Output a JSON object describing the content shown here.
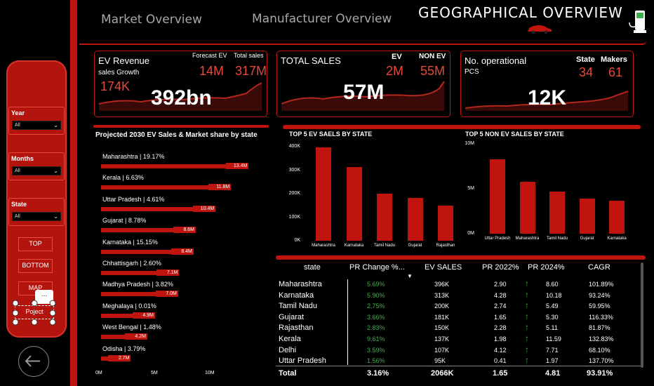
{
  "nav": {
    "market_overview": "Market Overview",
    "manufacturer_overview": "Manufacturer Overview",
    "geographical_overview": "GEOGRAPHICAL  OVERVIEW"
  },
  "sidebar": {
    "filters": [
      {
        "label": "Year",
        "value": "All"
      },
      {
        "label": "Months",
        "value": "All"
      },
      {
        "label": "State",
        "value": "All"
      }
    ],
    "buttons": {
      "top": "TOP",
      "bottom": "BOTTOM",
      "map": "MAP",
      "project": "Poject",
      "more": "..."
    }
  },
  "kpis": {
    "ev_revenue": {
      "title": "EV Revenue",
      "sub": "sales Growth",
      "growth": "174K",
      "big": "392bn",
      "forecast_label": "Forecast EV",
      "forecast_value": "14M",
      "total_label": "Total sales",
      "total_value": "317M"
    },
    "total_sales": {
      "title": "TOTAL SALES",
      "ev_label": "EV",
      "ev_value": "2M",
      "nonev_label": "NON EV",
      "nonev_value": "55M",
      "big": "57M"
    },
    "operational": {
      "title": "No. operational",
      "sub": "PCS",
      "state_label": "State",
      "state_value": "34",
      "makers_label": "Makers",
      "makers_value": "61",
      "big": "12K"
    }
  },
  "projected": {
    "title": "Projected 2030 EV Sales & Market share by state",
    "axis_max_m": 12,
    "rows": [
      {
        "label": "Maharashtra | 19.17%",
        "value_m": 13.4,
        "text": "13.4M"
      },
      {
        "label": "Kerala | 6.63%",
        "value_m": 11.8,
        "text": "11.8M"
      },
      {
        "label": "Uttar Pradesh | 4.61%",
        "value_m": 10.4,
        "text": "10.4M"
      },
      {
        "label": "Gujarat | 8.78%",
        "value_m": 8.6,
        "text": "8.6M"
      },
      {
        "label": "Karnataka | 15.15%",
        "value_m": 8.4,
        "text": "8.4M"
      },
      {
        "label": "Chhattisgarh | 2.60%",
        "value_m": 7.1,
        "text": "7.1M"
      },
      {
        "label": "Madhya Pradesh | 3.82%",
        "value_m": 7.0,
        "text": "7.0M"
      },
      {
        "label": "Meghalaya | 0.01%",
        "value_m": 4.9,
        "text": "4.9M"
      },
      {
        "label": "West Bengal | 1.48%",
        "value_m": 4.2,
        "text": "4.2M"
      },
      {
        "label": "Odisha | 3.79%",
        "value_m": 2.7,
        "text": "2.7M"
      }
    ],
    "ticks": [
      "0M",
      "5M",
      "10M"
    ]
  },
  "chart_data": [
    {
      "type": "bar",
      "title": "TOP 5 EV SAELS BY STATE",
      "categories": [
        "Maharashtra",
        "Karnataka",
        "Tamil Nadu",
        "Gujarat",
        "Rajasthan"
      ],
      "values": [
        396000,
        313000,
        200000,
        181000,
        150000
      ],
      "ylim": [
        0,
        400000
      ],
      "yticks": [
        "400K",
        "300K",
        "200K",
        "100K",
        "0K"
      ]
    },
    {
      "type": "bar",
      "title": "TOP 5 NON EV SALES BY STATE",
      "categories": [
        "Uttar Pradesh",
        "Maharashtra",
        "Tamil Nadu",
        "Gujarat",
        "Karnataka"
      ],
      "values": [
        8300000,
        5800000,
        4700000,
        3900000,
        3700000
      ],
      "ylim": [
        0,
        10000000
      ],
      "yticks": [
        "10M",
        "5M",
        "0M"
      ]
    }
  ],
  "table": {
    "headers": [
      "state",
      "PR Change %...",
      "EV SALES",
      "PR 2022%",
      "PR 2024%",
      "CAGR"
    ],
    "rows": [
      {
        "state": "Maharashtra",
        "pr_change": "5.69%",
        "ev_sales": "396K",
        "pr2022": "2.90",
        "pr2024": "8.60",
        "cagr": "101.89%"
      },
      {
        "state": "Karnataka",
        "pr_change": "5.90%",
        "ev_sales": "313K",
        "pr2022": "4.28",
        "pr2024": "10.18",
        "cagr": "93.24%"
      },
      {
        "state": "Tamil Nadu",
        "pr_change": "2.75%",
        "ev_sales": "200K",
        "pr2022": "2.74",
        "pr2024": "5.49",
        "cagr": "59.95%"
      },
      {
        "state": "Gujarat",
        "pr_change": "3.66%",
        "ev_sales": "181K",
        "pr2022": "1.65",
        "pr2024": "5.30",
        "cagr": "116.33%"
      },
      {
        "state": "Rajasthan",
        "pr_change": "2.83%",
        "ev_sales": "150K",
        "pr2022": "2.28",
        "pr2024": "5.11",
        "cagr": "81.87%"
      },
      {
        "state": "Kerala",
        "pr_change": "9.61%",
        "ev_sales": "137K",
        "pr2022": "1.98",
        "pr2024": "11.59",
        "cagr": "132.83%"
      },
      {
        "state": "Delhi",
        "pr_change": "3.59%",
        "ev_sales": "107K",
        "pr2022": "4.12",
        "pr2024": "7.71",
        "cagr": "68.10%"
      },
      {
        "state": "Uttar Pradesh",
        "pr_change": "1.56%",
        "ev_sales": "95K",
        "pr2022": "0.41",
        "pr2024": "1.97",
        "cagr": "137.70%"
      }
    ],
    "total": {
      "label": "Total",
      "pr_change": "3.16%",
      "ev_sales": "2066K",
      "pr2022": "1.65",
      "pr2024": "4.81",
      "cagr": "93.91%"
    }
  },
  "colors": {
    "accent": "#c0150f",
    "text_red": "#e8473a",
    "green": "#3fb04b"
  }
}
